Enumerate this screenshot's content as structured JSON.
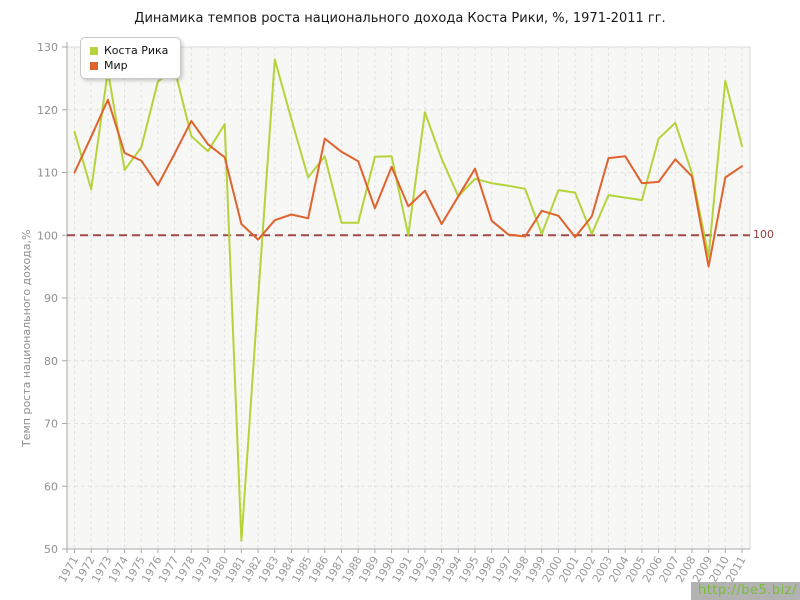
{
  "title": "Динамика темпов роста национального дохода Коста Рики, %, 1971-2011 гг.",
  "watermark": "http://be5.biz/",
  "chart_data": {
    "type": "line",
    "title": "Динамика темпов роста национального дохода Коста Рики, %, 1971-2011 гг.",
    "xlabel": "",
    "ylabel": "Темп роста национального дохода,%",
    "ylim": [
      50,
      130
    ],
    "yticks": [
      130,
      120,
      110,
      100,
      90,
      80,
      70,
      60,
      50
    ],
    "grid": true,
    "legend_position": "top-left",
    "reference_line": {
      "value": 100,
      "label": "100",
      "line_color": "#a14a4a",
      "label_color": "#8f3f3f"
    },
    "categories": [
      "1971",
      "1972",
      "1973",
      "1974",
      "1975",
      "1976",
      "1977",
      "1978",
      "1979",
      "1980",
      "1981",
      "1982",
      "1983",
      "1984",
      "1985",
      "1986",
      "1987",
      "1988",
      "1989",
      "1990",
      "1991",
      "1992",
      "1993",
      "1994",
      "1995",
      "1996",
      "1997",
      "1998",
      "1999",
      "2000",
      "2001",
      "2002",
      "2003",
      "2004",
      "2005",
      "2006",
      "2007",
      "2008",
      "2009",
      "2010",
      "2011"
    ],
    "series": [
      {
        "name": "Коста Рика",
        "color": "#b5d33a",
        "values": [
          116.5,
          107.3,
          126.2,
          110.4,
          114.0,
          124.5,
          126.5,
          115.8,
          113.4,
          117.7,
          51.3,
          90.0,
          128.0,
          118.5,
          109.2,
          112.6,
          102.0,
          102.0,
          112.5,
          112.6,
          100.0,
          119.6,
          112.2,
          106.2,
          109.0,
          108.3,
          107.9,
          107.4,
          100.2,
          107.2,
          106.8,
          100.2,
          106.4,
          106.0,
          105.6,
          115.4,
          117.9,
          109.9,
          96.6,
          124.6,
          114.2
        ]
      },
      {
        "name": "Мир",
        "color": "#e0632d",
        "values": [
          110.0,
          115.7,
          121.6,
          113.1,
          111.9,
          108.0,
          113.0,
          118.2,
          114.5,
          112.4,
          101.8,
          99.3,
          102.4,
          103.3,
          102.7,
          115.4,
          113.3,
          111.8,
          104.3,
          110.9,
          104.6,
          107.1,
          101.8,
          106.2,
          110.6,
          102.3,
          100.1,
          99.8,
          103.9,
          103.1,
          99.7,
          103.0,
          112.3,
          112.6,
          108.3,
          108.5,
          112.1,
          109.4,
          95.0,
          109.2,
          111.0
        ]
      }
    ]
  }
}
